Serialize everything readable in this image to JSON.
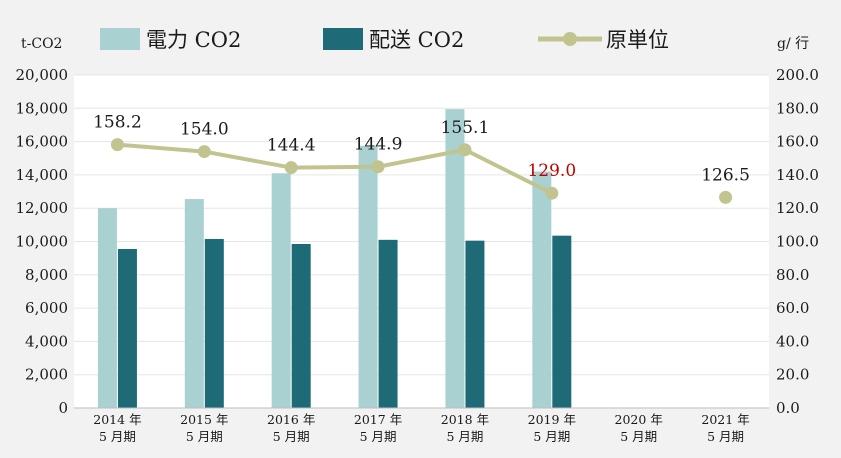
{
  "chart_data": {
    "type": "bar",
    "y_left_unit": "t-CO2",
    "y_right_unit": "g/ 行",
    "categories": [
      [
        "2014 年",
        "5 月期"
      ],
      [
        "2015 年",
        "5 月期"
      ],
      [
        "2016 年",
        "5 月期"
      ],
      [
        "2017 年",
        "5 月期"
      ],
      [
        "2018 年",
        "5 月期"
      ],
      [
        "2019 年",
        "5 月期"
      ],
      [
        "2020 年",
        "5 月期"
      ],
      [
        "2021 年",
        "5 月期"
      ]
    ],
    "ylim_left": [
      0,
      20000
    ],
    "ylim_right": [
      0,
      200
    ],
    "yticks_left": [
      "0",
      "2,000",
      "4,000",
      "6,000",
      "8,000",
      "10,000",
      "12,000",
      "14,000",
      "16,000",
      "18,000",
      "20,000"
    ],
    "yticks_right": [
      "0.0",
      "20.0",
      "40.0",
      "60.0",
      "80.0",
      "100.0",
      "120.0",
      "140.0",
      "160.0",
      "180.0",
      "200.0"
    ],
    "series": [
      {
        "name": "電力 CO2",
        "kind": "bar",
        "axis": "left",
        "color": "#a9d1d1",
        "values": [
          12000,
          12550,
          14100,
          15750,
          17950,
          14200,
          null,
          null
        ]
      },
      {
        "name": "配送 CO2",
        "kind": "bar",
        "axis": "left",
        "color": "#1e6b77",
        "values": [
          9550,
          10150,
          9850,
          10100,
          10050,
          10350,
          null,
          null
        ]
      },
      {
        "name": "原単位",
        "kind": "line",
        "axis": "right",
        "color": "#c2c48f",
        "values": [
          158.2,
          154.0,
          144.4,
          144.9,
          155.1,
          129.0,
          null,
          126.5
        ],
        "labels": [
          "158.2",
          "154.0",
          "144.4",
          "144.9",
          "155.1",
          "129.0",
          "",
          "126.5"
        ],
        "highlight_index": 5,
        "highlight_color": "#c00000",
        "separate_point_index": 7
      }
    ],
    "grid": true,
    "legend_position": "top"
  }
}
